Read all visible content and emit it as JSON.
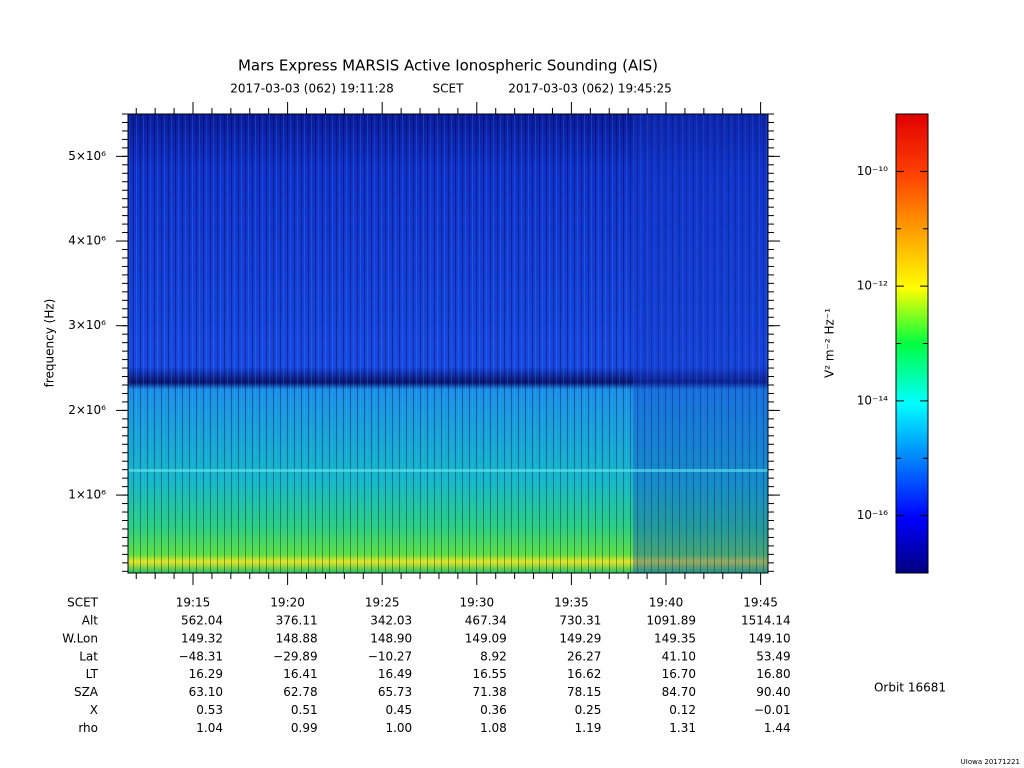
{
  "chart_data": {
    "type": "spectrogram",
    "title": "Mars Express MARSIS Active Ionospheric Sounding (AIS)",
    "time_range": {
      "start": "2017-03-03 (062) 19:11:28",
      "frame": "SCET",
      "end": "2017-03-03 (062) 19:45:25"
    },
    "ylabel": "frequency (Hz)",
    "ylim": [
      80000,
      5500000
    ],
    "yticks": [
      {
        "value": 1000000,
        "label": "1×10⁶"
      },
      {
        "value": 2000000,
        "label": "2×10⁶"
      },
      {
        "value": 3000000,
        "label": "3×10⁶"
      },
      {
        "value": 4000000,
        "label": "4×10⁶"
      },
      {
        "value": 5000000,
        "label": "5×10⁶"
      }
    ],
    "xticks": [
      "19:15",
      "19:20",
      "19:25",
      "19:30",
      "19:35",
      "19:40",
      "19:45"
    ],
    "colorbar": {
      "label": "V² m⁻² Hz⁻¹",
      "log": true,
      "lim": [
        1e-17,
        1e-09
      ],
      "ticks": [
        {
          "value": 1e-10,
          "label": "10⁻¹⁰"
        },
        {
          "value": 1e-12,
          "label": "10⁻¹²"
        },
        {
          "value": 1e-14,
          "label": "10⁻¹⁴"
        },
        {
          "value": 1e-16,
          "label": "10⁻¹⁶"
        }
      ],
      "minor_ticks": [
        1e-11,
        1e-13,
        1e-15
      ]
    }
  },
  "ephemeris": {
    "time_label": "SCET",
    "rows": [
      {
        "label": "Alt",
        "values": [
          "562.04",
          "376.11",
          "342.03",
          "467.34",
          "730.31",
          "1091.89",
          "1514.14"
        ]
      },
      {
        "label": "W.Lon",
        "values": [
          "149.32",
          "148.88",
          "148.90",
          "149.09",
          "149.29",
          "149.35",
          "149.10"
        ]
      },
      {
        "label": "Lat",
        "values": [
          "−48.31",
          "−29.89",
          "−10.27",
          "8.92",
          "26.27",
          "41.10",
          "53.49"
        ]
      },
      {
        "label": "LT",
        "values": [
          "16.29",
          "16.41",
          "16.49",
          "16.55",
          "16.62",
          "16.70",
          "16.80"
        ]
      },
      {
        "label": "SZA",
        "values": [
          "63.10",
          "62.78",
          "65.73",
          "71.38",
          "78.15",
          "84.70",
          "90.40"
        ]
      },
      {
        "label": "X",
        "values": [
          "0.53",
          "0.51",
          "0.45",
          "0.36",
          "0.25",
          "0.12",
          "−0.01"
        ]
      },
      {
        "label": "rho",
        "values": [
          "1.04",
          "0.99",
          "1.00",
          "1.08",
          "1.19",
          "1.31",
          "1.44"
        ]
      }
    ]
  },
  "orbit": "Orbit 16681",
  "credit": "UIowa 20171221"
}
